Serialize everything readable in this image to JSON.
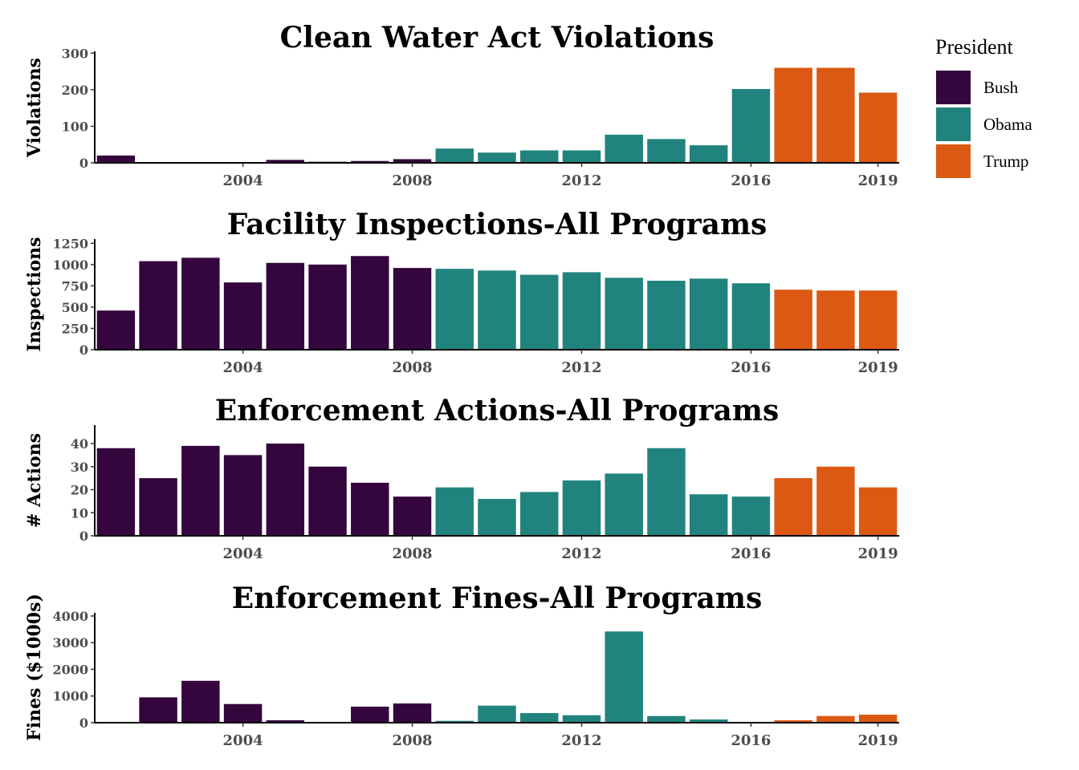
{
  "legend": {
    "title": "President",
    "entries": [
      {
        "name": "Bush",
        "color": "#35063E"
      },
      {
        "name": "Obama",
        "color": "#21837E"
      },
      {
        "name": "Trump",
        "color": "#DC5913"
      }
    ]
  },
  "chart_data": [
    {
      "type": "bar",
      "title": "Clean Water Act Violations",
      "ylabel": "Violations",
      "x": [
        2001,
        2002,
        2003,
        2004,
        2005,
        2006,
        2007,
        2008,
        2009,
        2010,
        2011,
        2012,
        2013,
        2014,
        2015,
        2016,
        2017,
        2018,
        2019
      ],
      "president": [
        "Bush",
        "Bush",
        "Bush",
        "Bush",
        "Bush",
        "Bush",
        "Bush",
        "Bush",
        "Obama",
        "Obama",
        "Obama",
        "Obama",
        "Obama",
        "Obama",
        "Obama",
        "Obama",
        "Trump",
        "Trump",
        "Trump"
      ],
      "values": [
        20,
        2,
        1,
        2,
        8,
        3,
        5,
        10,
        39,
        28,
        34,
        34,
        77,
        65,
        48,
        202,
        260,
        260,
        192
      ],
      "ylim": [
        0,
        305
      ],
      "yticks": [
        0,
        100,
        200,
        300
      ],
      "xticks": [
        2004,
        2008,
        2012,
        2016,
        2019
      ]
    },
    {
      "type": "bar",
      "title": "Facility Inspections-All Programs",
      "ylabel": "Inspections",
      "x": [
        2001,
        2002,
        2003,
        2004,
        2005,
        2006,
        2007,
        2008,
        2009,
        2010,
        2011,
        2012,
        2013,
        2014,
        2015,
        2016,
        2017,
        2018,
        2019
      ],
      "president": [
        "Bush",
        "Bush",
        "Bush",
        "Bush",
        "Bush",
        "Bush",
        "Bush",
        "Bush",
        "Obama",
        "Obama",
        "Obama",
        "Obama",
        "Obama",
        "Obama",
        "Obama",
        "Obama",
        "Trump",
        "Trump",
        "Trump"
      ],
      "values": [
        460,
        1040,
        1080,
        790,
        1020,
        1000,
        1100,
        960,
        950,
        930,
        880,
        910,
        845,
        810,
        835,
        780,
        705,
        695,
        695
      ],
      "ylim": [
        0,
        1300
      ],
      "yticks": [
        0,
        250,
        500,
        750,
        1000,
        1250
      ],
      "xticks": [
        2004,
        2008,
        2012,
        2016,
        2019
      ]
    },
    {
      "type": "bar",
      "title": "Enforcement Actions-All Programs",
      "ylabel": "# Actions",
      "x": [
        2001,
        2002,
        2003,
        2004,
        2005,
        2006,
        2007,
        2008,
        2009,
        2010,
        2011,
        2012,
        2013,
        2014,
        2015,
        2016,
        2017,
        2018,
        2019
      ],
      "president": [
        "Bush",
        "Bush",
        "Bush",
        "Bush",
        "Bush",
        "Bush",
        "Bush",
        "Bush",
        "Obama",
        "Obama",
        "Obama",
        "Obama",
        "Obama",
        "Obama",
        "Obama",
        "Obama",
        "Trump",
        "Trump",
        "Trump"
      ],
      "values": [
        38,
        25,
        39,
        35,
        40,
        30,
        23,
        17,
        21,
        16,
        19,
        24,
        27,
        38,
        18,
        17,
        25,
        30,
        21
      ],
      "ylim": [
        0,
        48
      ],
      "yticks": [
        0,
        10,
        20,
        30,
        40
      ],
      "xticks": [
        2004,
        2008,
        2012,
        2016,
        2019
      ]
    },
    {
      "type": "bar",
      "title": "Enforcement Fines-All Programs",
      "ylabel": "Fines ($1000s)",
      "x": [
        2001,
        2002,
        2003,
        2004,
        2005,
        2006,
        2007,
        2008,
        2009,
        2010,
        2011,
        2012,
        2013,
        2014,
        2015,
        2016,
        2017,
        2018,
        2019
      ],
      "president": [
        "Bush",
        "Bush",
        "Bush",
        "Bush",
        "Bush",
        "Bush",
        "Bush",
        "Bush",
        "Obama",
        "Obama",
        "Obama",
        "Obama",
        "Obama",
        "Obama",
        "Obama",
        "Obama",
        "Trump",
        "Trump",
        "Trump"
      ],
      "values": [
        0,
        950,
        1570,
        700,
        90,
        20,
        600,
        720,
        70,
        640,
        360,
        280,
        3420,
        250,
        120,
        30,
        90,
        250,
        300
      ],
      "ylim": [
        0,
        4120
      ],
      "yticks": [
        0,
        1000,
        2000,
        3000,
        4000
      ],
      "xticks": [
        2004,
        2008,
        2012,
        2016,
        2019
      ]
    }
  ]
}
